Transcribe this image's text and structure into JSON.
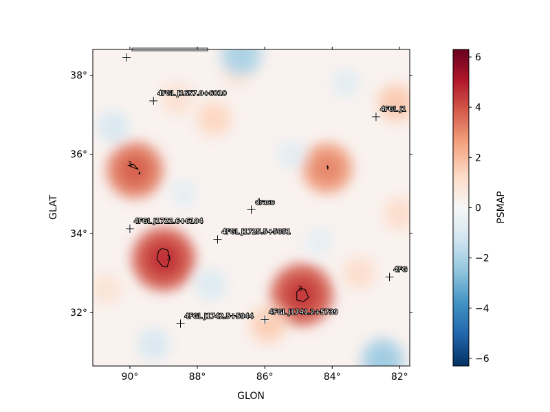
{
  "chart_data": {
    "type": "heatmap",
    "xlabel": "GLON",
    "ylabel": "GLAT",
    "colorbar_label": "PSMAP",
    "x_axis_reversed": true,
    "xlim": [
      91.1,
      81.7
    ],
    "ylim": [
      30.65,
      38.65
    ],
    "x_ticks": [
      {
        "value": 90,
        "label": "90°"
      },
      {
        "value": 88,
        "label": "88°"
      },
      {
        "value": 86,
        "label": "86°"
      },
      {
        "value": 84,
        "label": "84°"
      },
      {
        "value": 82,
        "label": "82°"
      }
    ],
    "y_ticks": [
      {
        "value": 32,
        "label": "32°"
      },
      {
        "value": 34,
        "label": "34°"
      },
      {
        "value": 36,
        "label": "36°"
      },
      {
        "value": 38,
        "label": "38°"
      }
    ],
    "colorbar_range": [
      -6.3,
      6.3
    ],
    "colorbar_ticks": [
      {
        "value": 6,
        "label": "6"
      },
      {
        "value": 4,
        "label": "4"
      },
      {
        "value": 2,
        "label": "2"
      },
      {
        "value": 0,
        "label": "0"
      },
      {
        "value": -2,
        "label": "−2"
      },
      {
        "value": -4,
        "label": "−4"
      },
      {
        "value": -6,
        "label": "−6"
      }
    ],
    "colormap": "RdBu_r",
    "contour_level": 3,
    "sources": [
      {
        "name": "",
        "glon": 90.1,
        "glat": 38.45,
        "label_cut": true
      },
      {
        "name": "4FGL J1657.0+6010",
        "glon": 89.3,
        "glat": 37.35
      },
      {
        "name": "4FGL J1",
        "glon": 82.7,
        "glat": 36.95
      },
      {
        "name": "draco",
        "glon": 86.4,
        "glat": 34.6
      },
      {
        "name": "4FGL J1722.6+6104",
        "glon": 90.0,
        "glat": 34.12
      },
      {
        "name": "4FGL J1725.5+5851",
        "glon": 87.4,
        "glat": 33.85
      },
      {
        "name": "4FG",
        "glon": 82.3,
        "glat": 32.9
      },
      {
        "name": "4FGL J1742.5+5944",
        "glon": 88.5,
        "glat": 31.72
      },
      {
        "name": "4FGL J1741.2+5739",
        "glon": 86.0,
        "glat": 31.82
      }
    ],
    "hotspots": [
      {
        "glon": 89.0,
        "glat": 33.35,
        "ts": 4.0
      },
      {
        "glon": 84.9,
        "glat": 32.45,
        "ts": 3.9
      },
      {
        "glon": 89.85,
        "glat": 35.6,
        "ts": 3.3
      },
      {
        "glon": 84.15,
        "glat": 35.65,
        "ts": 2.7
      },
      {
        "glon": 82.1,
        "glat": 37.3,
        "ts": 1.5
      },
      {
        "glon": 85.9,
        "glat": 31.7,
        "ts": 1.4
      },
      {
        "glon": 87.5,
        "glat": 36.9,
        "ts": 1.2
      },
      {
        "glon": 82.0,
        "glat": 34.5,
        "ts": 1.0
      },
      {
        "glon": 88.6,
        "glat": 37.4,
        "ts": 0.9
      },
      {
        "glon": 86.8,
        "glat": 38.1,
        "ts": 0.8
      },
      {
        "glon": 83.2,
        "glat": 33.0,
        "ts": 1.0
      },
      {
        "glon": 90.7,
        "glat": 32.6,
        "ts": 0.8
      }
    ],
    "coldspots": [
      {
        "glon": 86.7,
        "glat": 38.5,
        "ts": -1.8
      },
      {
        "glon": 82.5,
        "glat": 30.8,
        "ts": -2.0
      },
      {
        "glon": 90.5,
        "glat": 36.7,
        "ts": -0.9
      },
      {
        "glon": 87.6,
        "glat": 32.7,
        "ts": -0.8
      },
      {
        "glon": 89.3,
        "glat": 31.2,
        "ts": -0.9
      },
      {
        "glon": 85.2,
        "glat": 36.0,
        "ts": -0.6
      },
      {
        "glon": 83.6,
        "glat": 37.8,
        "ts": -0.6
      },
      {
        "glon": 88.4,
        "glat": 35.0,
        "ts": -0.5
      },
      {
        "glon": 84.4,
        "glat": 33.8,
        "ts": -0.5
      }
    ],
    "contours": [
      {
        "label_at": [
          88.85,
          33.38
        ],
        "points": [
          [
            89.15,
            33.55
          ],
          [
            89.05,
            33.62
          ],
          [
            88.88,
            33.58
          ],
          [
            88.82,
            33.35
          ],
          [
            88.9,
            33.15
          ],
          [
            89.05,
            33.18
          ],
          [
            89.2,
            33.35
          ]
        ]
      },
      {
        "label_at": [
          84.95,
          32.6
        ],
        "points": [
          [
            85.05,
            32.52
          ],
          [
            84.95,
            32.62
          ],
          [
            84.8,
            32.58
          ],
          [
            84.7,
            32.38
          ],
          [
            84.85,
            32.28
          ],
          [
            85.05,
            32.32
          ]
        ]
      },
      {
        "label_at": [
          90.0,
          35.75
        ],
        "points": [
          [
            90.05,
            35.72
          ],
          [
            89.85,
            35.65
          ],
          [
            89.75,
            35.62
          ],
          [
            89.9,
            35.75
          ],
          [
            90.05,
            35.72
          ]
        ]
      },
      {
        "label_at": null,
        "points": [
          [
            84.15,
            35.72
          ],
          [
            84.12,
            35.68
          ],
          [
            84.13,
            35.62
          ],
          [
            84.15,
            35.72
          ]
        ]
      },
      {
        "label_at": null,
        "points": [
          [
            89.72,
            35.55
          ],
          [
            89.7,
            35.52
          ],
          [
            89.73,
            35.5
          ],
          [
            89.72,
            35.55
          ]
        ]
      }
    ]
  }
}
